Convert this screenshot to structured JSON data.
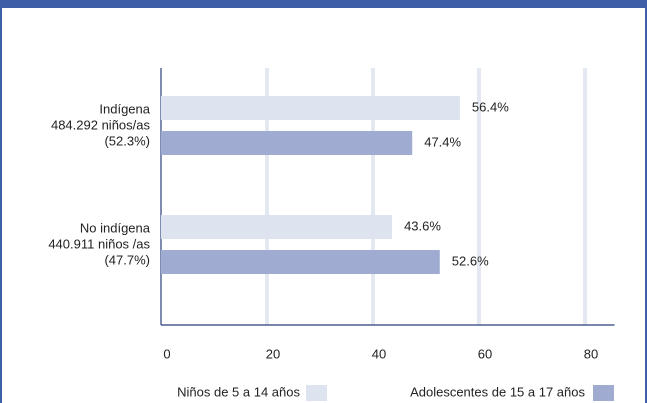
{
  "chart_data": {
    "type": "bar",
    "orientation": "horizontal",
    "categories": [
      [
        "Indígena",
        "484.292 niños/as",
        "(52.3%)"
      ],
      [
        "No indígena",
        "440.911 niños /as",
        "(47.7%)"
      ]
    ],
    "series": [
      {
        "name": "Niños de 5 a 14 años",
        "color": "#dde3ef",
        "values": [
          56.4,
          43.6
        ],
        "value_labels": [
          "56.4%",
          "43.6%"
        ]
      },
      {
        "name": "Adolescentes de 15 a 17 años",
        "color": "#9fabd0",
        "values": [
          47.4,
          52.6
        ],
        "value_labels": [
          "47.4%",
          "52.6%"
        ]
      }
    ],
    "xlim": [
      0,
      85
    ],
    "xticks": [
      0,
      20,
      40,
      60,
      80
    ],
    "grid": true,
    "legend": "bottom"
  }
}
